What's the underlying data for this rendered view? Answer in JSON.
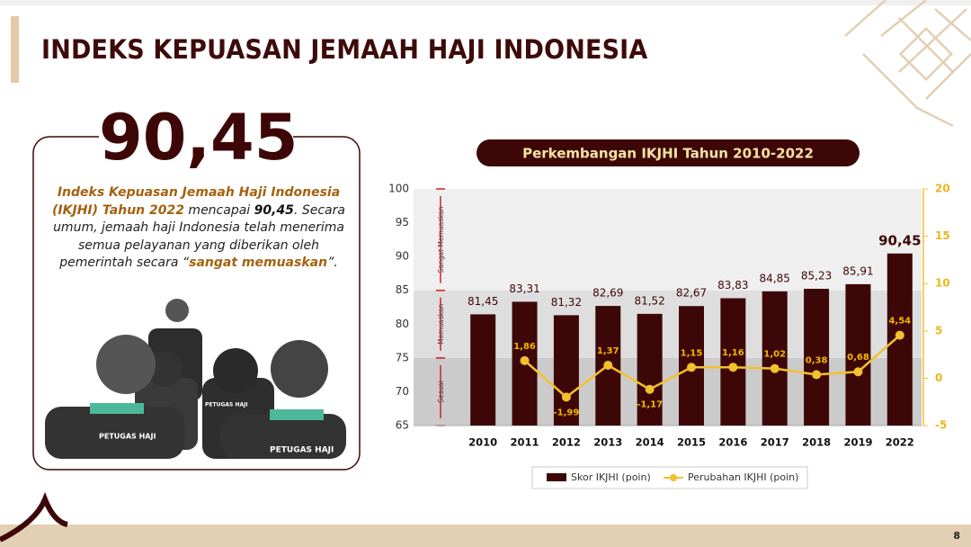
{
  "slide": {
    "title": "INDEKS KEPUASAN JEMAAH HAJI INDONESIA",
    "headline": "90,45",
    "description": [
      "Indeks Kepuasan Jemaah Haji Indonesia (IKJHI) Tahun 2022",
      " mencapai ",
      "90,45",
      ". Secara umum, jemaah haji Indonesia telah menerima semua pelayanan yang diberikan oleh pemerintah secara “",
      "sangat memuaskan",
      "”."
    ],
    "illustration_labels": [
      "PETUGAS HAJI",
      "PETUGAS HAJI",
      "PETUGAS HAJI"
    ],
    "page_number": "8"
  },
  "chart_data": {
    "type": "bar-line",
    "title": "Perkembangan IKJHI Tahun 2010-2022",
    "categories": [
      "2010",
      "2011",
      "2012",
      "2013",
      "2014",
      "2015",
      "2016",
      "2017",
      "2018",
      "2019",
      "2022"
    ],
    "series": [
      {
        "name": "Skor IKJHI (poin)",
        "type": "bar",
        "color": "#3e0707",
        "values": [
          81.45,
          83.31,
          81.32,
          82.69,
          81.52,
          82.67,
          83.83,
          84.85,
          85.23,
          85.91,
          90.45
        ],
        "value_labels": [
          "81,45",
          "83,31",
          "81,32",
          "82,69",
          "81,52",
          "82,67",
          "83,83",
          "84,85",
          "85,23",
          "85,91",
          "90,45"
        ]
      },
      {
        "name": "Perubahan IKJHI (poin)",
        "type": "line",
        "axis": "y2",
        "color": "#f2c12e",
        "values": [
          null,
          1.86,
          -1.99,
          1.37,
          -1.17,
          1.15,
          1.16,
          1.02,
          0.38,
          0.68,
          4.54
        ],
        "value_labels": [
          null,
          "1,86",
          "-1,99",
          "1,37",
          "-1,17",
          "1,15",
          "1,16",
          "1,02",
          "0,38",
          "0,68",
          "4,54"
        ]
      }
    ],
    "ylim": [
      65,
      100
    ],
    "yticks": [
      65,
      70,
      75,
      80,
      85,
      90,
      95,
      100
    ],
    "y2lim": [
      -5,
      20
    ],
    "y2ticks": [
      -5,
      0,
      5,
      10,
      15,
      20
    ],
    "bands": [
      {
        "label": "Sesuai",
        "from": 65,
        "to": 75,
        "color": "#cbcbcb"
      },
      {
        "label": "Memuaskan",
        "from": 75,
        "to": 85,
        "color": "#dedede"
      },
      {
        "label": "Sangat Memuaskan",
        "from": 85,
        "to": 100,
        "color": "#efefef"
      }
    ],
    "legend": "bottom"
  }
}
